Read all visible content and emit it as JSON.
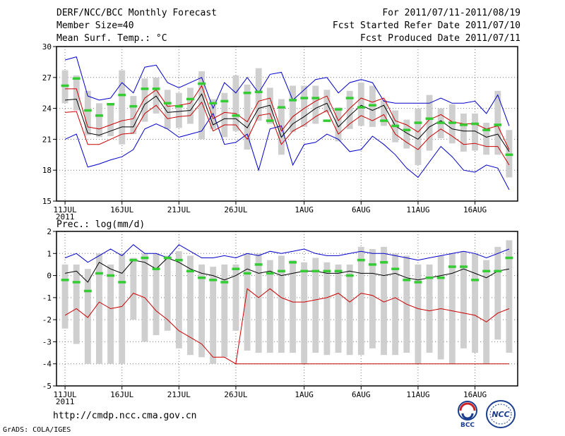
{
  "header": {
    "title": "DERF/NCC/BCC Monthly Forecast",
    "member_size": "Member Size=40",
    "variable": "Mean Surf. Temp.: °C",
    "period": "For 2011/07/11-2011/08/19",
    "started": "Fcst Started Refer Date 2011/07/10",
    "produced": "Fcst Produced Date 2011/07/11"
  },
  "footer": {
    "url": "http://cmdp.ncc.cma.gov.cn",
    "credit": "GrADS: COLA/IGES",
    "bcc_logo": "BCC",
    "ncc_logo": "NCC"
  },
  "x_axis": {
    "year_label": "2011",
    "ticks": [
      {
        "day": 1,
        "label": "11JUL"
      },
      {
        "day": 6,
        "label": "16JUL"
      },
      {
        "day": 11,
        "label": "21JUL"
      },
      {
        "day": 16,
        "label": "26JUL"
      },
      {
        "day": 22,
        "label": "1AUG"
      },
      {
        "day": 27,
        "label": "6AUG"
      },
      {
        "day": 32,
        "label": "11AUG"
      },
      {
        "day": 37,
        "label": "16AUG"
      }
    ]
  },
  "chart_data": [
    {
      "type": "box-line",
      "title": "Mean Surf. Temp.: °C",
      "x": [
        1,
        2,
        3,
        4,
        5,
        6,
        7,
        8,
        9,
        10,
        11,
        12,
        13,
        14,
        15,
        16,
        17,
        18,
        19,
        20,
        21,
        22,
        23,
        24,
        25,
        26,
        27,
        28,
        29,
        30,
        31,
        32,
        33,
        34,
        35,
        36,
        37,
        38,
        39,
        40
      ],
      "ylim": [
        15,
        30
      ],
      "yticks": [
        15,
        18,
        21,
        24,
        27,
        30
      ],
      "ytick_labels": [
        "15",
        "18",
        "21",
        "24",
        "27",
        "30"
      ],
      "series": [
        {
          "name": "max",
          "color": "#0000cc",
          "values": [
            21.0,
            21.5,
            18.3,
            18.6,
            19.0,
            19.3,
            20.0,
            22.0,
            22.5,
            22.0,
            21.2,
            21.5,
            21.8,
            23.5,
            20.5,
            20.7,
            21.5,
            18.0,
            22.0,
            22.3,
            18.5,
            20.5,
            20.7,
            21.5,
            21.0,
            19.8,
            20.0,
            21.3,
            20.5,
            19.5,
            18.2,
            17.3,
            18.8,
            20.3,
            19.3,
            18.0,
            17.8,
            18.5,
            18.2,
            16.1
          ]
        },
        {
          "name": "max_upper",
          "color": "#0000cc",
          "values": [
            28.7,
            29.0,
            25.2,
            24.8,
            25.0,
            26.5,
            25.5,
            28.0,
            28.2,
            26.5,
            26.0,
            26.5,
            27.0,
            24.0,
            26.5,
            25.5,
            27.0,
            25.5,
            27.3,
            27.5,
            24.8,
            25.8,
            26.8,
            27.0,
            25.5,
            26.5,
            26.8,
            26.5,
            24.7,
            24.5,
            24.5,
            24.5,
            24.5,
            25.0,
            24.5,
            24.5,
            24.7,
            23.5,
            25.3,
            22.3
          ]
        },
        {
          "name": "mean",
          "color": "#000000",
          "values": [
            24.8,
            24.9,
            21.6,
            21.4,
            21.8,
            22.2,
            22.2,
            24.4,
            25.2,
            23.6,
            23.7,
            23.8,
            25.4,
            22.4,
            23.0,
            23.0,
            22.1,
            24.0,
            24.3,
            21.2,
            22.5,
            23.2,
            24.0,
            24.5,
            22.2,
            23.3,
            24.3,
            23.8,
            24.3,
            22.3,
            21.6,
            21.0,
            22.2,
            22.8,
            22.0,
            21.8,
            21.8,
            21.2,
            21.5,
            19.8
          ]
        },
        {
          "name": "lower_pct",
          "color": "#cc0000",
          "values": [
            23.6,
            23.7,
            20.5,
            20.5,
            21.0,
            21.5,
            21.6,
            23.5,
            24.3,
            23.0,
            23.2,
            23.3,
            24.6,
            21.8,
            22.4,
            22.4,
            21.0,
            23.3,
            23.5,
            20.5,
            21.8,
            22.4,
            23.2,
            23.8,
            21.5,
            22.5,
            23.3,
            22.8,
            23.4,
            21.5,
            20.7,
            20.0,
            21.2,
            22.0,
            21.3,
            20.5,
            20.6,
            20.3,
            20.3,
            18.5
          ]
        },
        {
          "name": "upper_pct",
          "color": "#cc0000",
          "values": [
            25.9,
            25.9,
            22.2,
            22.0,
            22.4,
            22.8,
            23.0,
            25.0,
            25.8,
            24.2,
            24.3,
            24.5,
            26.2,
            23.0,
            23.6,
            23.5,
            22.7,
            24.7,
            25.0,
            21.8,
            23.2,
            24.0,
            24.7,
            25.2,
            22.8,
            24.0,
            25.0,
            24.6,
            25.0,
            22.8,
            22.4,
            21.7,
            22.9,
            23.4,
            22.7,
            22.5,
            22.5,
            22.0,
            22.3,
            20.0
          ]
        },
        {
          "name": "deterministic",
          "color": "#33cc33",
          "values": [
            26.2,
            26.9,
            23.8,
            23.3,
            24.4,
            25.3,
            24.2,
            25.9,
            25.9,
            24.5,
            24.2,
            24.9,
            26.4,
            24.5,
            24.7,
            23.3,
            25.5,
            25.6,
            22.8,
            24.1,
            24.8,
            25.0,
            25.0,
            22.8,
            23.9,
            25.0,
            24.1,
            24.3,
            22.8,
            22.3,
            21.9,
            22.6,
            23.0,
            22.6,
            22.6,
            22.4,
            22.5,
            21.9,
            22.4,
            19.5
          ]
        }
      ],
      "boxes": {
        "low": [
          24.5,
          23.8,
          21.4,
          21.2,
          21.3,
          20.5,
          21.5,
          22.7,
          23.5,
          22.0,
          22.1,
          22.5,
          21.0,
          22.0,
          21.2,
          21.8,
          20.0,
          22.8,
          22.5,
          19.5,
          21.7,
          22.2,
          22.5,
          23.6,
          20.8,
          22.0,
          22.3,
          22.2,
          22.3,
          20.7,
          20.1,
          18.5,
          19.9,
          21.1,
          20.6,
          19.8,
          19.9,
          19.5,
          19.5,
          17.3
        ],
        "high": [
          27.7,
          27.2,
          25.7,
          24.5,
          24.5,
          27.7,
          25.2,
          26.9,
          27.0,
          25.8,
          25.5,
          26.0,
          27.6,
          24.9,
          25.5,
          27.2,
          26.3,
          27.9,
          26.0,
          24.9,
          26.2,
          26.2,
          26.2,
          25.8,
          24.1,
          25.7,
          26.5,
          26.2,
          24.8,
          23.8,
          22.9,
          24.0,
          25.3,
          24.0,
          24.4,
          23.5,
          23.5,
          22.6,
          25.7,
          21.9
        ]
      }
    },
    {
      "type": "box-line",
      "title": "Prec.: log(mm/d)",
      "x": [
        1,
        2,
        3,
        4,
        5,
        6,
        7,
        8,
        9,
        10,
        11,
        12,
        13,
        14,
        15,
        16,
        17,
        18,
        19,
        20,
        21,
        22,
        23,
        24,
        25,
        26,
        27,
        28,
        29,
        30,
        31,
        32,
        33,
        34,
        35,
        36,
        37,
        38,
        39,
        40
      ],
      "ylim": [
        -5,
        2
      ],
      "yticks": [
        -5,
        -4,
        -3,
        -2,
        -1,
        0,
        1,
        2
      ],
      "ytick_labels": [
        "-5",
        "-4",
        "-3",
        "-2",
        "-1",
        "0",
        "1",
        "2"
      ],
      "series": [
        {
          "name": "max",
          "color": "#0000cc",
          "values": [
            0.8,
            1.0,
            0.6,
            0.9,
            1.2,
            0.9,
            1.4,
            1.0,
            1.0,
            0.8,
            1.4,
            1.1,
            0.8,
            0.8,
            0.9,
            0.8,
            1.0,
            0.9,
            1.1,
            1.0,
            1.1,
            1.2,
            1.0,
            0.9,
            0.9,
            1.0,
            1.1,
            1.0,
            1.0,
            0.9,
            0.8,
            0.7,
            0.8,
            0.9,
            1.0,
            1.1,
            1.0,
            0.8,
            1.0,
            1.2
          ]
        },
        {
          "name": "mean",
          "color": "#000000",
          "values": [
            0.1,
            0.2,
            -0.3,
            0.6,
            0.3,
            0.1,
            0.7,
            0.6,
            0.3,
            0.8,
            0.6,
            0.3,
            0.1,
            0.0,
            -0.2,
            0.0,
            0.3,
            0.1,
            0.2,
            0.0,
            0.1,
            0.2,
            0.2,
            0.1,
            0.1,
            0.2,
            0.1,
            0.1,
            0.0,
            0.1,
            -0.1,
            -0.2,
            -0.1,
            0.0,
            0.1,
            0.3,
            0.1,
            -0.1,
            0.2,
            0.3
          ]
        },
        {
          "name": "min",
          "color": "#cc0000",
          "values": [
            -1.8,
            -1.5,
            -1.9,
            -1.2,
            -1.5,
            -1.4,
            -0.8,
            -1.0,
            -1.6,
            -2.0,
            -2.5,
            -2.8,
            -3.1,
            -3.7,
            -3.7,
            -4.0,
            -4.0,
            -4.0,
            -4.0,
            -4.0,
            -4.0,
            -4.0,
            -4.0,
            -4.0,
            -4.0,
            -4.0,
            -4.0,
            -4.0,
            -4.0,
            -4.0,
            -4.0,
            -4.0,
            -4.0,
            -4.0,
            -4.0,
            -4.0,
            -4.0,
            -4.0,
            -4.0,
            -4.0
          ]
        },
        {
          "name": "member_min",
          "color": "#cc0000",
          "values": [
            null,
            null,
            null,
            null,
            null,
            null,
            null,
            null,
            null,
            null,
            null,
            null,
            null,
            null,
            null,
            -4.0,
            -0.6,
            -1.0,
            -0.6,
            -1.0,
            -1.2,
            -1.2,
            -1.1,
            -1.0,
            -0.8,
            -1.2,
            -0.8,
            -0.9,
            -1.2,
            -1.0,
            -1.3,
            -1.5,
            -1.6,
            -1.5,
            -1.6,
            -1.7,
            -1.8,
            -2.1,
            -1.7,
            -1.5
          ]
        },
        {
          "name": "deterministic",
          "color": "#33cc33",
          "values": [
            -0.2,
            -0.3,
            -0.7,
            0.1,
            0.0,
            -0.3,
            0.7,
            0.8,
            0.3,
            0.8,
            0.7,
            0.2,
            -0.1,
            -0.2,
            -0.3,
            0.3,
            0.1,
            0.5,
            0.1,
            0.2,
            0.6,
            0.2,
            0.2,
            0.2,
            0.2,
            0.0,
            0.7,
            0.5,
            0.6,
            0.3,
            -0.2,
            -0.3,
            -0.1,
            -0.1,
            0.4,
            0.4,
            -0.2,
            0.2,
            0.2,
            0.8
          ]
        }
      ],
      "boxes": {
        "low": [
          -2.4,
          -3.1,
          -4.0,
          -4.0,
          -4.0,
          -4.0,
          -2.0,
          -3.0,
          -2.7,
          -2.5,
          -3.3,
          -3.6,
          -3.7,
          -4.0,
          -3.7,
          -2.5,
          -3.4,
          -3.5,
          -3.5,
          -3.5,
          -3.5,
          -4.0,
          -3.5,
          -3.6,
          -3.5,
          -3.6,
          -3.6,
          -3.3,
          -3.6,
          -3.6,
          -3.5,
          -4.0,
          -3.5,
          -3.8,
          -4.0,
          -3.3,
          -3.5,
          -4.0,
          -2.9,
          -3.5
        ],
        "high": [
          0.5,
          0.5,
          0.3,
          1.0,
          0.5,
          1.0,
          0.8,
          1.0,
          1.0,
          0.9,
          1.1,
          0.9,
          0.5,
          0.4,
          0.5,
          0.5,
          1.0,
          1.0,
          0.7,
          0.9,
          0.7,
          0.6,
          0.8,
          0.6,
          0.5,
          0.5,
          1.3,
          1.2,
          1.3,
          1.0,
          0.9,
          0.5,
          0.5,
          0.9,
          1.0,
          1.1,
          1.0,
          0.7,
          1.3,
          1.6
        ]
      }
    }
  ]
}
